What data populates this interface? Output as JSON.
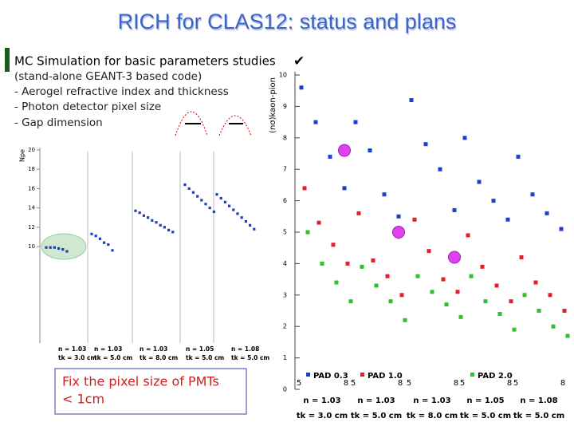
{
  "header": {
    "title": "RICH for CLAS12: status and plans"
  },
  "bullet": {
    "text": "MC Simulation for basic parameters studies",
    "check": "✔"
  },
  "notes": [
    "(stand-alone GEANT-3 based code)",
    "- Aerogel refractive index and thickness",
    "- Photon detector pixel size",
    "- Gap dimension"
  ],
  "callout": {
    "lines": [
      "Fix the pixel size of PMTs",
      "< 1cm"
    ]
  },
  "chart_data": [
    {
      "type": "dot",
      "ylabel": "Npe",
      "ylim": [
        0,
        20.5
      ],
      "yticks": [
        10,
        12,
        14,
        16,
        18,
        20
      ],
      "color": "#1a3fbf",
      "groups": [
        {
          "label": [
            "n = 1.03",
            "tk = 3.0 cm"
          ],
          "values": [
            9.9,
            9.9,
            9.9,
            9.8,
            9.7,
            9.5
          ]
        },
        {
          "label": [
            "n = 1.03",
            "tk = 5.0 cm"
          ],
          "values": [
            11.3,
            11.1,
            10.8,
            10.4,
            10.2,
            9.6
          ]
        },
        {
          "label": [
            "n = 1.03",
            "tk = 8.0 cm"
          ],
          "values": [
            13.7,
            13.5,
            13.2,
            13.0,
            12.7,
            12.5,
            12.2,
            12.0,
            11.7,
            11.5
          ]
        },
        {
          "label": [
            "n = 1.05",
            "tk = 5.0 cm"
          ],
          "values": [
            16.4,
            16.0,
            15.6,
            15.2,
            14.8,
            14.4,
            14.0,
            13.6
          ]
        },
        {
          "label": [
            "n = 1.08",
            "tk = 5.0 cm"
          ],
          "values": [
            15.4,
            15.0,
            14.6,
            14.2,
            13.8,
            13.4,
            13.0,
            12.6,
            12.2,
            11.8
          ]
        }
      ]
    },
    {
      "type": "scatter",
      "ylabel": "(nσ)kaon-pion",
      "ylim": [
        0,
        10
      ],
      "yticks": [
        0,
        1,
        2,
        3,
        4,
        5,
        6,
        7,
        8,
        9,
        10
      ],
      "x_labels": [
        "5",
        "8",
        "5",
        "8",
        "5",
        "8",
        "5",
        "8",
        "5",
        "8"
      ],
      "group_labels": [
        [
          "n = 1.03",
          "tk = 3.0 cm"
        ],
        [
          "n = 1.03",
          "tk = 5.0 cm"
        ],
        [
          "n = 1.03",
          "tk = 8.0 cm"
        ],
        [
          "n = 1.05",
          "tk = 5.0 cm"
        ],
        [
          "n = 1.08",
          "tk = 5.0 cm"
        ]
      ],
      "series": [
        {
          "name": "PAD 0.3",
          "color": "#1a3fd0",
          "values": [
            9.6,
            8.5,
            7.4,
            6.4,
            8.5,
            7.6,
            6.2,
            5.5,
            9.2,
            7.8,
            7.0,
            5.7,
            8.0,
            6.6,
            6.0,
            5.4,
            7.4,
            6.2,
            5.6,
            5.1
          ]
        },
        {
          "name": "PAD 1.0",
          "color": "#e0202a",
          "values": [
            6.4,
            5.3,
            4.6,
            4.0,
            5.6,
            4.1,
            3.6,
            3.0,
            5.4,
            4.4,
            3.5,
            3.1,
            4.9,
            3.9,
            3.3,
            2.8,
            4.2,
            3.4,
            3.0,
            2.5
          ]
        },
        {
          "name": "PAD 2.0",
          "color": "#2ec02e",
          "values": [
            5.0,
            4.0,
            3.4,
            2.8,
            3.9,
            3.3,
            2.8,
            2.2,
            3.6,
            3.1,
            2.7,
            2.3,
            3.6,
            2.8,
            2.4,
            1.9,
            3.0,
            2.5,
            2.0,
            1.7
          ]
        }
      ],
      "highlights": [
        {
          "index": 3,
          "value": 7.6
        },
        {
          "index": 7,
          "value": 5.0
        },
        {
          "index": 11,
          "value": 4.2
        }
      ],
      "highlight_color": "#e040f0"
    }
  ]
}
